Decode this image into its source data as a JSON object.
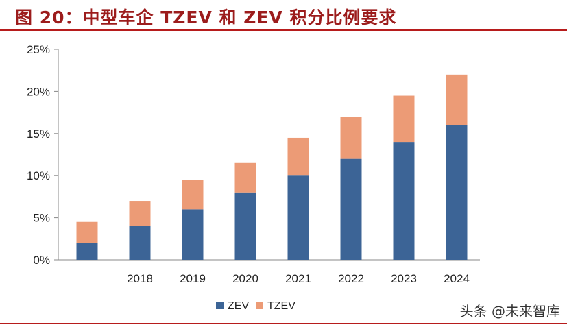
{
  "title": "图 20：中型车企 TZEV 和 ZEV 积分比例要求",
  "watermark": "头条 @未来智库",
  "colors": {
    "zev": "#3c6496",
    "tzev": "#ec9b76",
    "title": "#9c1c1c",
    "rule": "#b71c1c",
    "axis": "#888888"
  },
  "chart_data": {
    "type": "bar",
    "stacked": true,
    "categories": [
      "",
      "2018",
      "2019",
      "2020",
      "2021",
      "2022",
      "2023",
      "2024"
    ],
    "series": [
      {
        "name": "ZEV",
        "values": [
          2,
          4,
          6,
          8,
          10,
          12,
          14,
          16
        ]
      },
      {
        "name": "TZEV",
        "values": [
          2.5,
          3,
          3.5,
          3.5,
          4.5,
          5,
          5.5,
          6
        ]
      }
    ],
    "ylim": [
      0,
      25
    ],
    "yticks": [
      "0%",
      "5%",
      "10%",
      "15%",
      "20%",
      "25%"
    ],
    "ytick_values": [
      0,
      5,
      10,
      15,
      20,
      25
    ],
    "xlabel": "",
    "ylabel": "",
    "legend_position": "bottom-center",
    "grid": false
  }
}
